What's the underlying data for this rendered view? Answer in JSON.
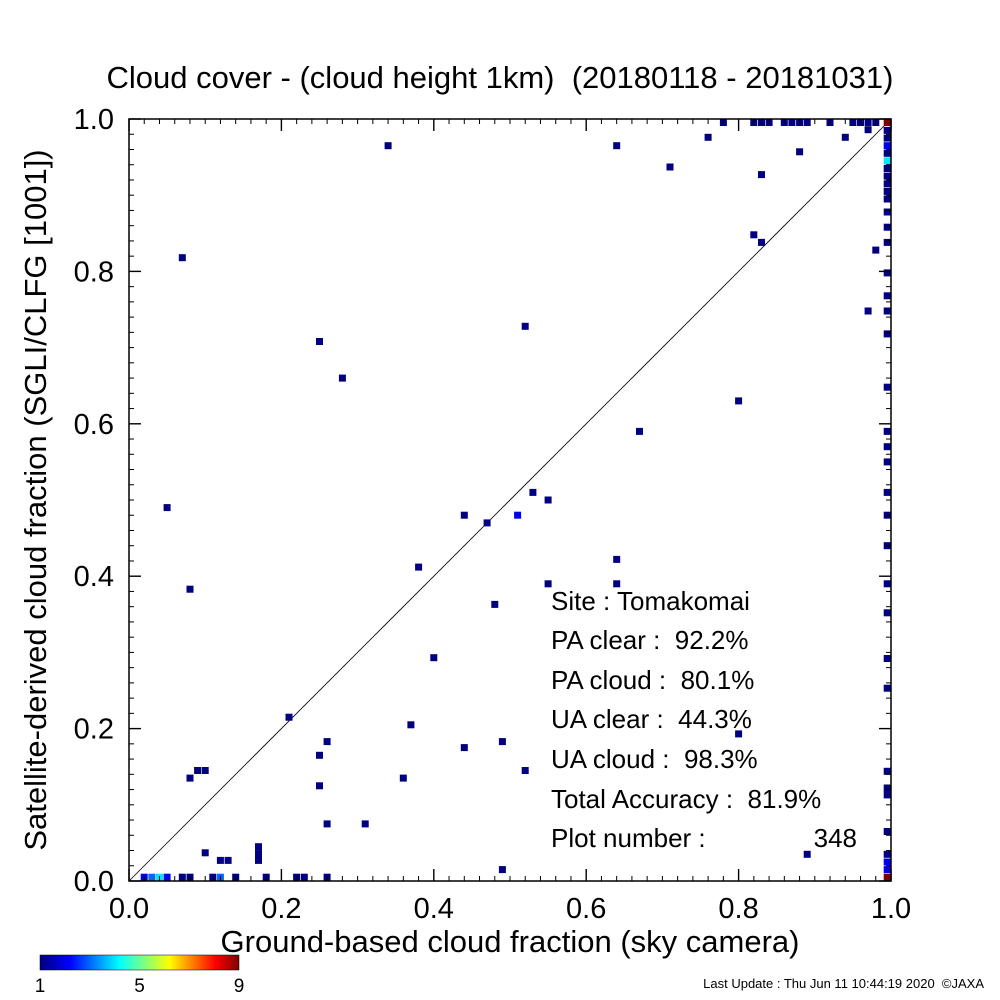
{
  "chart_data": {
    "type": "heatmap",
    "title": "Cloud cover - (cloud height 1km)  (20180118 - 20181031)",
    "xlabel": "Ground-based cloud fraction (sky camera)",
    "ylabel": "Satellite-derived cloud fraction (SGLI/CLFG [1001])",
    "xlim": [
      0,
      1
    ],
    "ylim": [
      0,
      1
    ],
    "x_ticks": [
      "0.0",
      "0.2",
      "0.4",
      "0.6",
      "0.8",
      "1.0"
    ],
    "y_ticks": [
      "0.0",
      "0.2",
      "0.4",
      "0.6",
      "0.8",
      "1.0"
    ],
    "reference_line": "y = x",
    "grid": false,
    "colorbar": {
      "min": 1,
      "max": 9,
      "tick_labels": [
        "1",
        "5",
        "9"
      ],
      "colors": [
        "#000080",
        "#0000ff",
        "#00ffff",
        "#ffff00",
        "#ff0000",
        "#800000"
      ]
    },
    "points": [
      {
        "x": 0.02,
        "y": 0.005,
        "count": 2
      },
      {
        "x": 0.03,
        "y": 0.005,
        "count": 3
      },
      {
        "x": 0.04,
        "y": 0.005,
        "count": 4
      },
      {
        "x": 0.05,
        "y": 0.005,
        "count": 2
      },
      {
        "x": 0.07,
        "y": 0.005,
        "count": 1
      },
      {
        "x": 0.08,
        "y": 0.005,
        "count": 1
      },
      {
        "x": 0.11,
        "y": 0.005,
        "count": 1
      },
      {
        "x": 0.12,
        "y": 0.005,
        "count": 3
      },
      {
        "x": 0.14,
        "y": 0.005,
        "count": 1
      },
      {
        "x": 0.18,
        "y": 0.005,
        "count": 1
      },
      {
        "x": 0.22,
        "y": 0.005,
        "count": 1
      },
      {
        "x": 0.23,
        "y": 0.005,
        "count": 1
      },
      {
        "x": 0.26,
        "y": 0.005,
        "count": 1
      },
      {
        "x": 0.49,
        "y": 0.015,
        "count": 1
      },
      {
        "x": 0.12,
        "y": 0.027,
        "count": 1
      },
      {
        "x": 0.13,
        "y": 0.027,
        "count": 1
      },
      {
        "x": 0.17,
        "y": 0.027,
        "count": 1
      },
      {
        "x": 0.17,
        "y": 0.036,
        "count": 1
      },
      {
        "x": 0.17,
        "y": 0.045,
        "count": 1
      },
      {
        "x": 0.1,
        "y": 0.037,
        "count": 1
      },
      {
        "x": 0.89,
        "y": 0.035,
        "count": 1
      },
      {
        "x": 0.26,
        "y": 0.075,
        "count": 1
      },
      {
        "x": 0.31,
        "y": 0.075,
        "count": 1
      },
      {
        "x": 0.08,
        "y": 0.135,
        "count": 1
      },
      {
        "x": 0.09,
        "y": 0.145,
        "count": 1
      },
      {
        "x": 0.1,
        "y": 0.145,
        "count": 1
      },
      {
        "x": 0.36,
        "y": 0.135,
        "count": 1
      },
      {
        "x": 0.25,
        "y": 0.125,
        "count": 1
      },
      {
        "x": 0.52,
        "y": 0.145,
        "count": 1
      },
      {
        "x": 0.25,
        "y": 0.165,
        "count": 1
      },
      {
        "x": 0.26,
        "y": 0.183,
        "count": 1
      },
      {
        "x": 0.44,
        "y": 0.175,
        "count": 1
      },
      {
        "x": 0.49,
        "y": 0.183,
        "count": 1
      },
      {
        "x": 0.8,
        "y": 0.193,
        "count": 1
      },
      {
        "x": 0.37,
        "y": 0.205,
        "count": 1
      },
      {
        "x": 0.21,
        "y": 0.215,
        "count": 1
      },
      {
        "x": 0.4,
        "y": 0.293,
        "count": 1
      },
      {
        "x": 0.48,
        "y": 0.363,
        "count": 1
      },
      {
        "x": 0.08,
        "y": 0.383,
        "count": 1
      },
      {
        "x": 0.55,
        "y": 0.39,
        "count": 1
      },
      {
        "x": 0.64,
        "y": 0.39,
        "count": 1
      },
      {
        "x": 0.38,
        "y": 0.412,
        "count": 1
      },
      {
        "x": 0.64,
        "y": 0.422,
        "count": 1
      },
      {
        "x": 0.05,
        "y": 0.49,
        "count": 1
      },
      {
        "x": 0.44,
        "y": 0.48,
        "count": 1
      },
      {
        "x": 0.47,
        "y": 0.47,
        "count": 1
      },
      {
        "x": 0.51,
        "y": 0.48,
        "count": 2
      },
      {
        "x": 0.53,
        "y": 0.51,
        "count": 1
      },
      {
        "x": 0.55,
        "y": 0.5,
        "count": 1
      },
      {
        "x": 0.67,
        "y": 0.59,
        "count": 1
      },
      {
        "x": 0.8,
        "y": 0.63,
        "count": 1
      },
      {
        "x": 0.28,
        "y": 0.66,
        "count": 1
      },
      {
        "x": 0.25,
        "y": 0.708,
        "count": 1
      },
      {
        "x": 0.52,
        "y": 0.728,
        "count": 1
      },
      {
        "x": 0.97,
        "y": 0.748,
        "count": 1
      },
      {
        "x": 0.07,
        "y": 0.818,
        "count": 1
      },
      {
        "x": 0.98,
        "y": 0.828,
        "count": 1
      },
      {
        "x": 0.82,
        "y": 0.848,
        "count": 1
      },
      {
        "x": 0.83,
        "y": 0.838,
        "count": 1
      },
      {
        "x": 0.83,
        "y": 0.927,
        "count": 1
      },
      {
        "x": 0.71,
        "y": 0.937,
        "count": 1
      },
      {
        "x": 0.88,
        "y": 0.957,
        "count": 1
      },
      {
        "x": 0.34,
        "y": 0.965,
        "count": 1
      },
      {
        "x": 0.64,
        "y": 0.965,
        "count": 1
      },
      {
        "x": 0.76,
        "y": 0.976,
        "count": 1
      },
      {
        "x": 0.94,
        "y": 0.976,
        "count": 1
      },
      {
        "x": 0.97,
        "y": 0.986,
        "count": 1
      },
      {
        "x": 0.78,
        "y": 0.996,
        "count": 1
      },
      {
        "x": 0.82,
        "y": 0.996,
        "count": 1
      },
      {
        "x": 0.83,
        "y": 0.996,
        "count": 1
      },
      {
        "x": 0.84,
        "y": 0.996,
        "count": 1
      },
      {
        "x": 0.86,
        "y": 0.996,
        "count": 1
      },
      {
        "x": 0.87,
        "y": 0.996,
        "count": 1
      },
      {
        "x": 0.88,
        "y": 0.996,
        "count": 1
      },
      {
        "x": 0.89,
        "y": 0.996,
        "count": 1
      },
      {
        "x": 0.92,
        "y": 0.996,
        "count": 1
      },
      {
        "x": 0.95,
        "y": 0.996,
        "count": 1
      },
      {
        "x": 0.96,
        "y": 0.996,
        "count": 1
      },
      {
        "x": 0.97,
        "y": 0.996,
        "count": 1
      },
      {
        "x": 0.98,
        "y": 0.996,
        "count": 1
      },
      {
        "x": 0.995,
        "y": 0.996,
        "count": 9
      },
      {
        "x": 0.995,
        "y": 0.985,
        "count": 1
      },
      {
        "x": 0.995,
        "y": 0.975,
        "count": 1
      },
      {
        "x": 0.995,
        "y": 0.965,
        "count": 2
      },
      {
        "x": 0.995,
        "y": 0.955,
        "count": 1
      },
      {
        "x": 0.995,
        "y": 0.945,
        "count": 4
      },
      {
        "x": 0.995,
        "y": 0.935,
        "count": 1
      },
      {
        "x": 0.995,
        "y": 0.925,
        "count": 1
      },
      {
        "x": 0.995,
        "y": 0.915,
        "count": 1
      },
      {
        "x": 0.995,
        "y": 0.905,
        "count": 1
      },
      {
        "x": 0.995,
        "y": 0.895,
        "count": 1
      },
      {
        "x": 0.995,
        "y": 0.878,
        "count": 1
      },
      {
        "x": 0.995,
        "y": 0.858,
        "count": 1
      },
      {
        "x": 0.995,
        "y": 0.838,
        "count": 1
      },
      {
        "x": 0.995,
        "y": 0.798,
        "count": 1
      },
      {
        "x": 0.995,
        "y": 0.768,
        "count": 1
      },
      {
        "x": 0.995,
        "y": 0.748,
        "count": 1
      },
      {
        "x": 0.995,
        "y": 0.718,
        "count": 1
      },
      {
        "x": 0.995,
        "y": 0.648,
        "count": 1
      },
      {
        "x": 0.995,
        "y": 0.59,
        "count": 1
      },
      {
        "x": 0.995,
        "y": 0.57,
        "count": 1
      },
      {
        "x": 0.995,
        "y": 0.55,
        "count": 1
      },
      {
        "x": 0.995,
        "y": 0.51,
        "count": 1
      },
      {
        "x": 0.995,
        "y": 0.48,
        "count": 1
      },
      {
        "x": 0.995,
        "y": 0.44,
        "count": 1
      },
      {
        "x": 0.995,
        "y": 0.39,
        "count": 1
      },
      {
        "x": 0.995,
        "y": 0.352,
        "count": 1
      },
      {
        "x": 0.995,
        "y": 0.292,
        "count": 1
      },
      {
        "x": 0.995,
        "y": 0.253,
        "count": 1
      },
      {
        "x": 0.995,
        "y": 0.144,
        "count": 1
      },
      {
        "x": 0.995,
        "y": 0.122,
        "count": 1
      },
      {
        "x": 0.995,
        "y": 0.113,
        "count": 1
      },
      {
        "x": 0.995,
        "y": 0.065,
        "count": 1
      },
      {
        "x": 0.995,
        "y": 0.035,
        "count": 1
      },
      {
        "x": 0.995,
        "y": 0.025,
        "count": 2
      },
      {
        "x": 0.995,
        "y": 0.015,
        "count": 2
      },
      {
        "x": 0.995,
        "y": 0.005,
        "count": 9
      }
    ]
  },
  "stats": {
    "site": "Site : Tomakomai",
    "pa_clear": "PA clear :  92.2%",
    "pa_cloud": "PA cloud :  80.1%",
    "ua_clear": "UA clear :  44.3%",
    "ua_cloud": "UA cloud :  98.3%",
    "total_accuracy": "Total Accuracy :  81.9%",
    "plot_number_label": "Plot number :",
    "plot_number_value": "348"
  },
  "footer": {
    "last_update": "Last Update : Thu Jun 11 10:44:19 2020  ©JAXA"
  }
}
